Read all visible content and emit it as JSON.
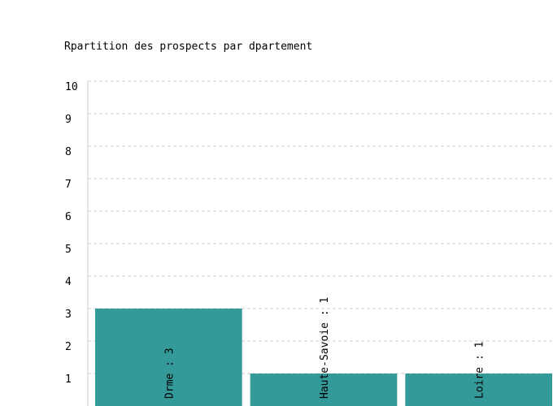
{
  "chart_data": {
    "type": "bar",
    "title": "Rpartition des prospects par dpartement",
    "categories": [
      "Drme",
      "Haute-Savoie",
      "Loire"
    ],
    "values": [
      3,
      1,
      1
    ],
    "data_labels": [
      "Drme : 3",
      "Haute-Savoie : 1",
      "Loire : 1"
    ],
    "ylim": [
      0,
      10
    ],
    "yticks": [
      "1",
      "2",
      "3",
      "4",
      "5",
      "6",
      "7",
      "8",
      "9",
      "10"
    ],
    "grid": true,
    "bar_color": "#339999",
    "grid_color": "#cccccc",
    "axis_color": "#cccccc"
  }
}
